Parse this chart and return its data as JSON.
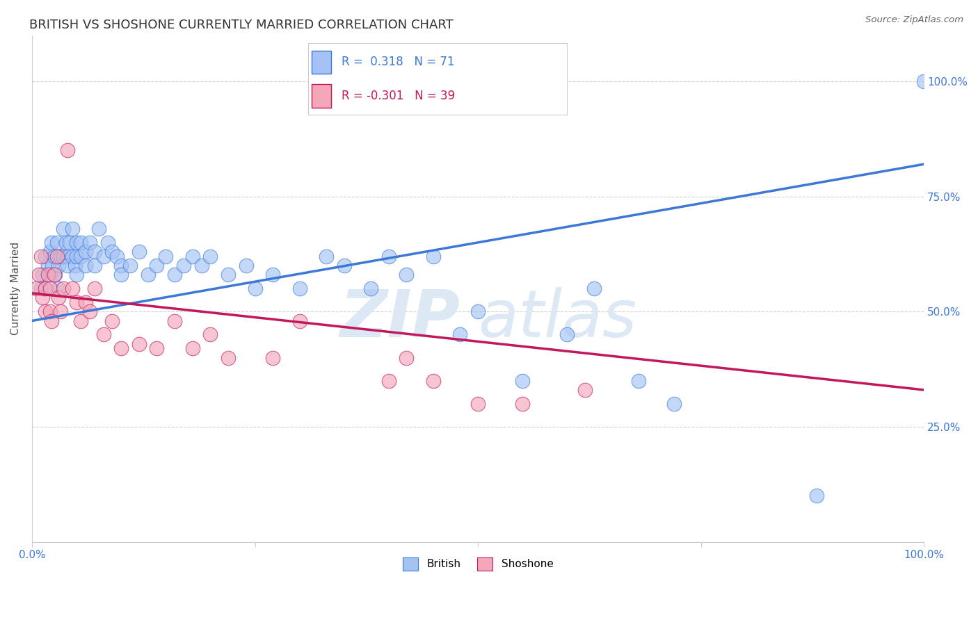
{
  "title": "BRITISH VS SHOSHONE CURRENTLY MARRIED CORRELATION CHART",
  "source": "Source: ZipAtlas.com",
  "ylabel": "Currently Married",
  "watermark": "ZIPatlas",
  "british_R": 0.318,
  "british_N": 71,
  "shoshone_R": -0.301,
  "shoshone_N": 39,
  "blue_color": "#a4c2f4",
  "pink_color": "#f4a7b9",
  "blue_line_color": "#3c78d8",
  "pink_line_color": "#c2185b",
  "title_fontsize": 13,
  "axis_label_fontsize": 11,
  "tick_fontsize": 11,
  "british_x": [
    1.0,
    1.2,
    1.5,
    1.5,
    1.8,
    2.0,
    2.0,
    2.2,
    2.3,
    2.5,
    2.6,
    2.8,
    3.0,
    3.0,
    3.2,
    3.5,
    3.5,
    3.8,
    4.0,
    4.0,
    4.2,
    4.5,
    4.5,
    4.8,
    5.0,
    5.0,
    5.0,
    5.5,
    5.5,
    6.0,
    6.0,
    6.5,
    7.0,
    7.0,
    7.5,
    8.0,
    8.5,
    9.0,
    9.5,
    10.0,
    10.0,
    11.0,
    12.0,
    13.0,
    14.0,
    15.0,
    16.0,
    17.0,
    18.0,
    19.0,
    20.0,
    22.0,
    24.0,
    25.0,
    27.0,
    30.0,
    33.0,
    35.0,
    38.0,
    40.0,
    42.0,
    45.0,
    48.0,
    50.0,
    55.0,
    60.0,
    63.0,
    68.0,
    72.0,
    88.0,
    100.0
  ],
  "british_y": [
    55,
    58,
    62,
    55,
    60,
    63,
    58,
    65,
    60,
    62,
    58,
    65,
    60,
    55,
    62,
    68,
    62,
    65,
    62,
    60,
    65,
    68,
    62,
    60,
    65,
    62,
    58,
    65,
    62,
    63,
    60,
    65,
    63,
    60,
    68,
    62,
    65,
    63,
    62,
    60,
    58,
    60,
    63,
    58,
    60,
    62,
    58,
    60,
    62,
    60,
    62,
    58,
    60,
    55,
    58,
    55,
    62,
    60,
    55,
    62,
    58,
    62,
    45,
    50,
    35,
    45,
    55,
    35,
    30,
    10,
    100
  ],
  "shoshone_x": [
    0.5,
    0.8,
    1.0,
    1.2,
    1.5,
    1.5,
    1.8,
    2.0,
    2.0,
    2.2,
    2.5,
    2.8,
    3.0,
    3.2,
    3.5,
    4.0,
    4.5,
    5.0,
    5.5,
    6.0,
    6.5,
    7.0,
    8.0,
    9.0,
    10.0,
    12.0,
    14.0,
    16.0,
    18.0,
    20.0,
    22.0,
    27.0,
    30.0,
    40.0,
    42.0,
    45.0,
    50.0,
    55.0,
    62.0
  ],
  "shoshone_y": [
    55,
    58,
    62,
    53,
    55,
    50,
    58,
    50,
    55,
    48,
    58,
    62,
    53,
    50,
    55,
    85,
    55,
    52,
    48,
    52,
    50,
    55,
    45,
    48,
    42,
    43,
    42,
    48,
    42,
    45,
    40,
    40,
    48,
    35,
    40,
    35,
    30,
    30,
    33
  ],
  "xlim": [
    0,
    100
  ],
  "ylim": [
    0,
    110
  ],
  "yticks": [
    25,
    50,
    75,
    100
  ],
  "ytick_labels": [
    "25.0%",
    "50.0%",
    "75.0%",
    "100.0%"
  ],
  "blue_trend_x": [
    0,
    100
  ],
  "blue_trend_y": [
    48,
    82
  ],
  "pink_trend_x": [
    0,
    100
  ],
  "pink_trend_y": [
    54,
    33
  ],
  "background_color": "#ffffff",
  "grid_color": "#cccccc"
}
